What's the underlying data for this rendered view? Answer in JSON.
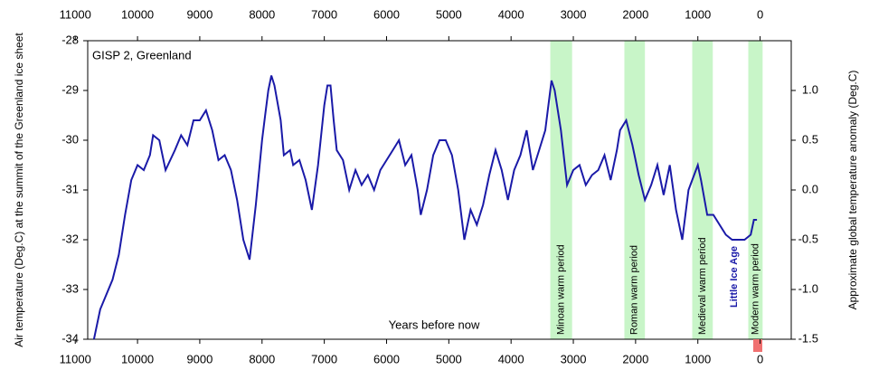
{
  "chart_data": {
    "type": "line",
    "title": "GISP 2, Greenland",
    "xlabel": "Years before now",
    "ylabel": "Air temperature (Deg.C) at the summit of the Greenland ice sheet",
    "y2label": "Approximate global temperature anomaly (Deg.C)",
    "x": [
      10700,
      10600,
      10400,
      10300,
      10200,
      10100,
      10000,
      9900,
      9800,
      9750,
      9650,
      9550,
      9400,
      9300,
      9200,
      9100,
      9000,
      8900,
      8800,
      8700,
      8600,
      8500,
      8400,
      8300,
      8200,
      8100,
      8000,
      7950,
      7900,
      7850,
      7800,
      7700,
      7650,
      7550,
      7500,
      7400,
      7300,
      7200,
      7100,
      7000,
      6950,
      6900,
      6850,
      6800,
      6700,
      6600,
      6500,
      6400,
      6300,
      6200,
      6100,
      6000,
      5900,
      5800,
      5700,
      5600,
      5500,
      5450,
      5350,
      5250,
      5150,
      5050,
      4950,
      4850,
      4750,
      4650,
      4550,
      4450,
      4350,
      4250,
      4150,
      4050,
      3950,
      3850,
      3750,
      3650,
      3550,
      3450,
      3350,
      3300,
      3200,
      3100,
      3000,
      2900,
      2800,
      2700,
      2600,
      2500,
      2400,
      2300,
      2250,
      2150,
      2050,
      1950,
      1850,
      1750,
      1650,
      1550,
      1450,
      1350,
      1250,
      1150,
      1000,
      950,
      850,
      750,
      650,
      550,
      450,
      350,
      250,
      150,
      100,
      50
    ],
    "series": [
      {
        "name": "GISP 2",
        "color": "#1a1aa8",
        "values": [
          -34.0,
          -33.4,
          -32.8,
          -32.3,
          -31.5,
          -30.8,
          -30.5,
          -30.6,
          -30.3,
          -29.9,
          -30.0,
          -30.6,
          -30.2,
          -29.9,
          -30.1,
          -29.6,
          -29.6,
          -29.4,
          -29.8,
          -30.4,
          -30.3,
          -30.6,
          -31.2,
          -32.0,
          -32.4,
          -31.3,
          -30.0,
          -29.5,
          -29.0,
          -28.7,
          -28.9,
          -29.6,
          -30.3,
          -30.2,
          -30.5,
          -30.4,
          -30.8,
          -31.4,
          -30.5,
          -29.3,
          -28.9,
          -28.9,
          -29.6,
          -30.2,
          -30.4,
          -31.0,
          -30.6,
          -30.9,
          -30.7,
          -31.0,
          -30.6,
          -30.4,
          -30.2,
          -30.0,
          -30.5,
          -30.3,
          -31.0,
          -31.5,
          -31.0,
          -30.3,
          -30.0,
          -30.0,
          -30.3,
          -31.0,
          -32.0,
          -31.4,
          -31.7,
          -31.3,
          -30.7,
          -30.2,
          -30.6,
          -31.2,
          -30.6,
          -30.3,
          -29.8,
          -30.6,
          -30.2,
          -29.8,
          -28.8,
          -29.0,
          -29.8,
          -30.9,
          -30.6,
          -30.5,
          -30.9,
          -30.7,
          -30.6,
          -30.3,
          -30.8,
          -30.2,
          -29.8,
          -29.6,
          -30.1,
          -30.7,
          -31.2,
          -30.9,
          -30.5,
          -31.1,
          -30.5,
          -31.4,
          -32.0,
          -31.0,
          -30.5,
          -30.8,
          -31.5,
          -31.5,
          -31.7,
          -31.9,
          -32.0,
          -32.0,
          -32.0,
          -31.9,
          -31.6,
          -31.6
        ]
      }
    ],
    "xlim": [
      10800,
      -500
    ],
    "xticks": [
      11000,
      10000,
      9000,
      8000,
      7000,
      6000,
      5000,
      4000,
      3000,
      2000,
      1000,
      0
    ],
    "ylim": [
      -34,
      -28
    ],
    "yticks": [
      -34,
      -33,
      -32,
      -31,
      -30,
      -29,
      -28
    ],
    "y2lim": [
      -1.5,
      1.5
    ],
    "y2ticks": [
      -1.5,
      {
        "value": -1.0,
        "label": "-1.0"
      },
      -0.5,
      {
        "value": 0.0,
        "label": "0.0"
      },
      0.5,
      {
        "value": 1.0,
        "label": "1.0"
      }
    ],
    "periods": [
      {
        "label": "Minoan warm period",
        "start": 3370,
        "end": 3020,
        "color": "#c8f5c8"
      },
      {
        "label": "Roman warm period",
        "start": 2180,
        "end": 1850,
        "color": "#c8f5c8"
      },
      {
        "label": "Medieval warm period",
        "start": 1090,
        "end": 760,
        "color": "#c8f5c8"
      },
      {
        "label": "Modern warm period",
        "start": 190,
        "end": -40,
        "color": "#c8f5c8"
      }
    ],
    "annotation": "Little Ice Age"
  }
}
